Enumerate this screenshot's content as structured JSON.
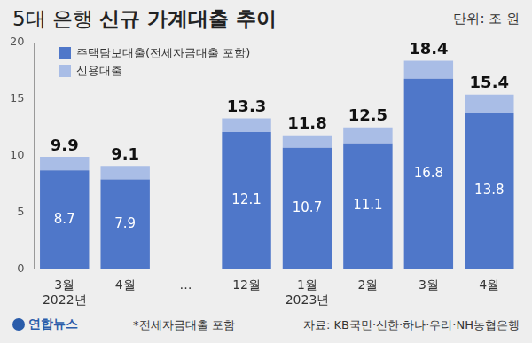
{
  "chart_data": {
    "type": "bar",
    "title": "5대 은행 신규 가계대출 추이",
    "unit": "단위: 조 원",
    "categories": [
      "3월\n2022년",
      "4월",
      "…",
      "12월",
      "1월\n2023년",
      "2월",
      "3월",
      "4월"
    ],
    "series": [
      {
        "name": "주택담보대출(전세자금대출 포함)",
        "color": "#4f77c9",
        "values": [
          8.7,
          7.9,
          null,
          12.1,
          10.7,
          11.1,
          16.8,
          13.8
        ],
        "data_labels": true
      },
      {
        "name": "신용대출",
        "color": "#a9bde6",
        "values": [
          1.2,
          1.2,
          null,
          1.2,
          1.1,
          1.4,
          1.6,
          1.6
        ],
        "data_labels": false
      }
    ],
    "totals": [
      9.9,
      9.1,
      null,
      13.3,
      11.8,
      12.5,
      18.4,
      15.4
    ],
    "stacked": true,
    "ylim": [
      0,
      20
    ],
    "yticks": [
      0,
      5,
      10,
      15,
      20
    ],
    "grid": false,
    "legend": "upper left",
    "note": "*전세자금대출 포함",
    "source": "자료: KB국민·신한·하나·우리·NH농협은행",
    "credit": "연합뉴스"
  }
}
